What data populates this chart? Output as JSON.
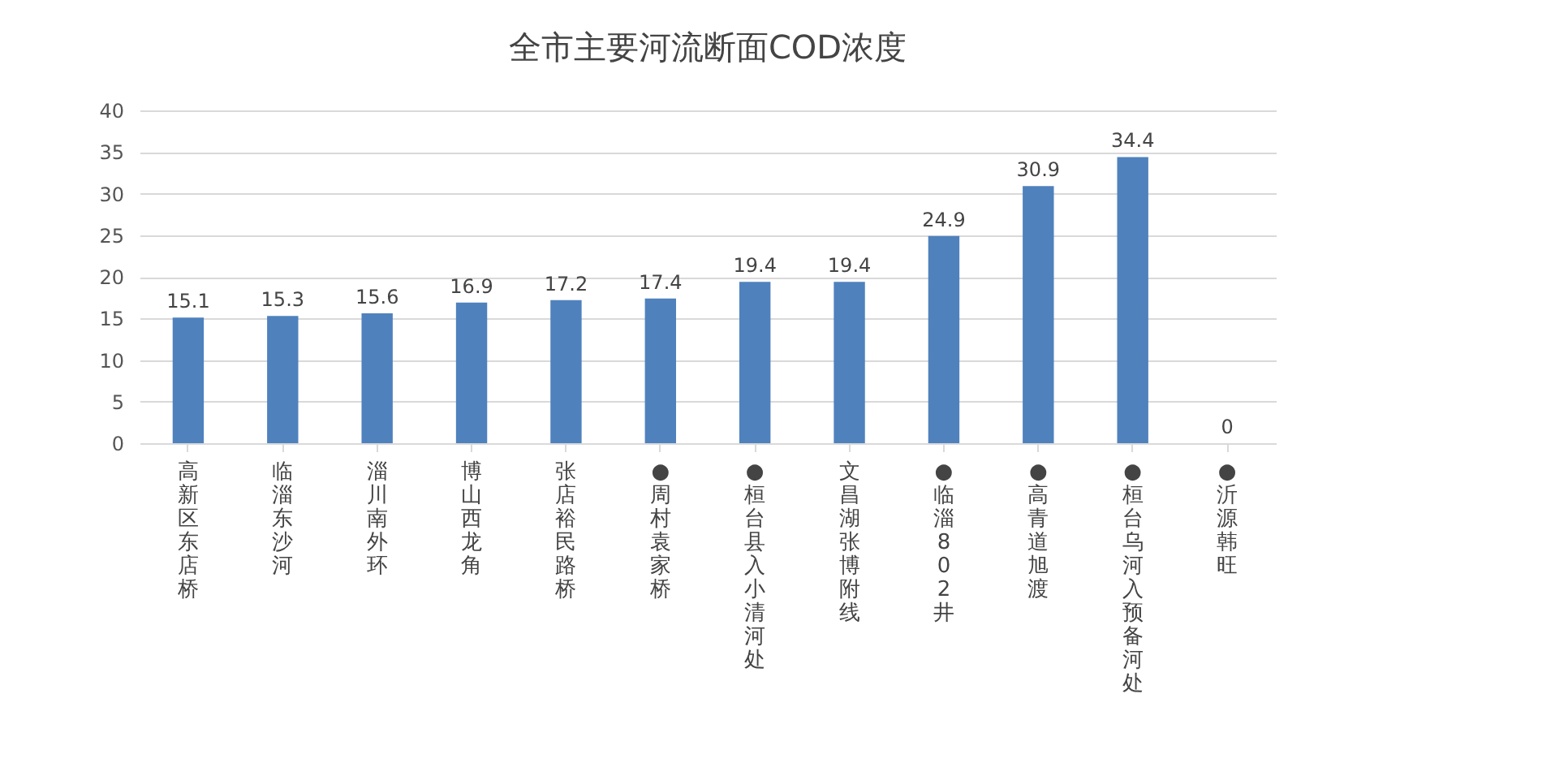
{
  "chart_data": {
    "type": "bar",
    "title": "全市主要河流断面COD浓度",
    "categories": [
      "高新区东店桥",
      "临淄东沙河",
      "淄川南外环",
      "博山西龙角",
      "张店裕民路桥",
      "●周村袁家桥",
      "●桓台县入小清河处",
      "文昌湖张博附线",
      "●临淄802井",
      "●高青道旭渡",
      "●桓台乌河入预备河处",
      "●沂源韩旺"
    ],
    "values": [
      15.1,
      15.3,
      15.6,
      16.9,
      17.2,
      17.4,
      19.4,
      19.4,
      24.9,
      30.9,
      34.4,
      0
    ],
    "color": "#4f81bd",
    "ylim": [
      0,
      40
    ],
    "yticks": [
      0,
      5,
      10,
      15,
      20,
      25,
      30,
      35,
      40
    ],
    "grid": "y",
    "data_labels": true
  }
}
